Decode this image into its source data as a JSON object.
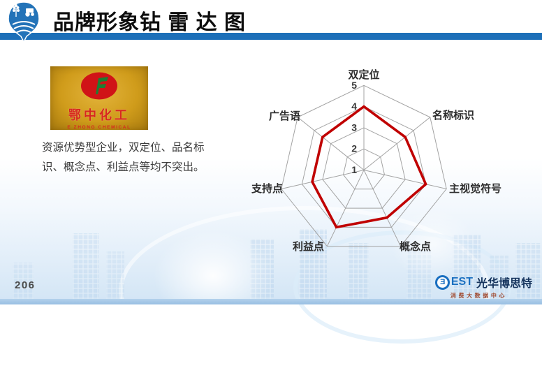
{
  "slide": {
    "title": "品牌形象钻 雷 达 图",
    "page_number": "206"
  },
  "brand_logo_card": {
    "name_cn": "鄂中化工",
    "name_en": "E ZHONG CHEMICAL"
  },
  "description": "资源优势型企业，双定位、品名标识、概念点、利益点等均不突出。",
  "footer_brand": {
    "est_text": "EST",
    "circle_letter": "E",
    "name_cn": "光华博思特",
    "subtitle": "消费大数据中心"
  },
  "colors": {
    "header_bar": "#1c6fb8",
    "balloon_blue": "#2373b8",
    "gold": "#d09c1b",
    "emblem_red": "#d01317",
    "radar_line": "#c00000",
    "radar_grid": "#a3a3a3"
  },
  "chart_data": {
    "type": "radar",
    "title": "品牌形象钻 雷达图",
    "categories": [
      "双定位",
      "名称标识",
      "主视觉符号",
      "概念点",
      "利益点",
      "支持点",
      "广告语"
    ],
    "values": [
      4,
      3.5,
      4,
      3.5,
      4,
      3.5,
      3.5
    ],
    "scale": {
      "min": 1,
      "max": 5,
      "ticks": [
        1,
        2,
        3,
        4,
        5
      ]
    },
    "grid": true,
    "legend": false,
    "line_color": "#c00000"
  }
}
